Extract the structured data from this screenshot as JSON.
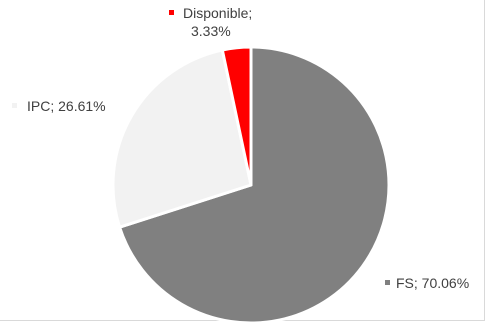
{
  "chart_data": {
    "type": "pie",
    "title": "",
    "start_angle_deg": 0,
    "direction": "clockwise",
    "slices": [
      {
        "name": "FS",
        "value": 70.06,
        "label": "FS; 70.06%",
        "color": "#808080"
      },
      {
        "name": "IPC",
        "value": 26.61,
        "label": "IPC; 26.61%",
        "color": "#f2f2f2"
      },
      {
        "name": "Disponible",
        "value": 3.33,
        "label_line1": "Disponible;",
        "label_line2": "3.33%",
        "color": "#ff0000"
      }
    ],
    "legend": "none",
    "slice_border_color": "#ffffff"
  }
}
